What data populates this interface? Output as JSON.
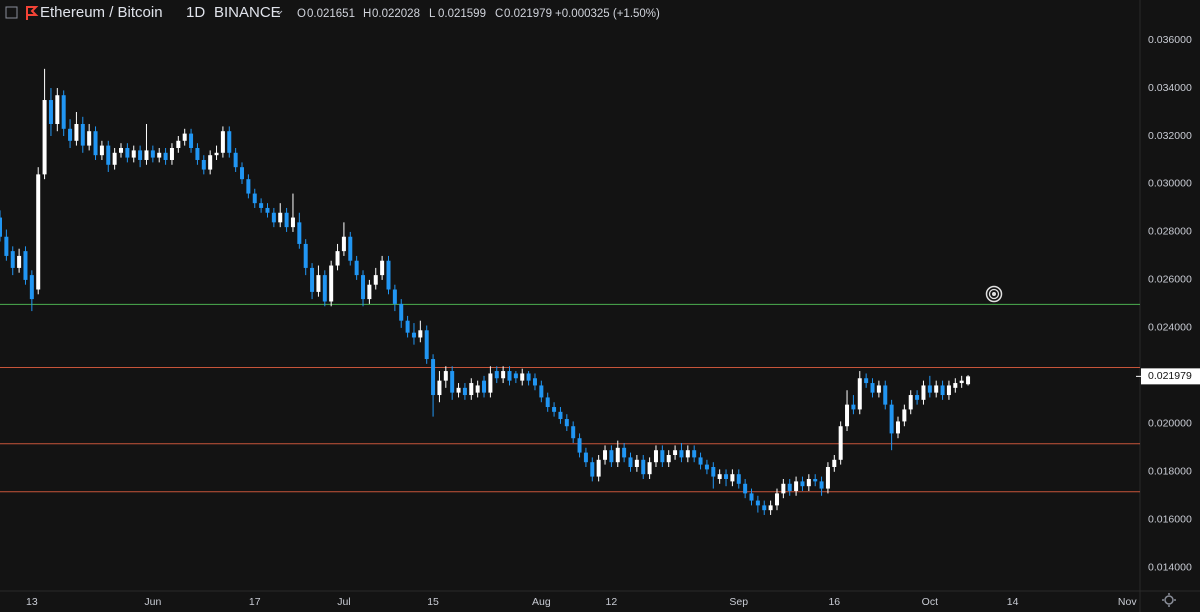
{
  "chart_data": {
    "type": "candlestick",
    "symbol": "Ethereum / Bitcoin",
    "interval": "1D",
    "exchange": "BINANCE",
    "ohlc_labels": [
      "O",
      "H",
      "L",
      "C"
    ],
    "change_label": "+0.000325 (+1.50%)",
    "up_color": "#ffffff",
    "down_color": "#2196f3",
    "x": [
      "May 8",
      "May 9",
      "May 10",
      "May 11",
      "May 12",
      "May 13",
      "May 14",
      "May 15",
      "May 16",
      "May 17",
      "May 18",
      "May 19",
      "May 20",
      "May 21",
      "May 22",
      "May 23",
      "May 24",
      "May 25",
      "May 26",
      "May 27",
      "May 28",
      "May 29",
      "May 30",
      "May 31",
      "Jun 1",
      "Jun 2",
      "Jun 3",
      "Jun 4",
      "Jun 5",
      "Jun 6",
      "Jun 7",
      "Jun 8",
      "Jun 9",
      "Jun 10",
      "Jun 11",
      "Jun 12",
      "Jun 13",
      "Jun 14",
      "Jun 15",
      "Jun 16",
      "Jun 17",
      "Jun 18",
      "Jun 19",
      "Jun 20",
      "Jun 21",
      "Jun 22",
      "Jun 23",
      "Jun 24",
      "Jun 25",
      "Jun 26",
      "Jun 27",
      "Jun 28",
      "Jun 29",
      "Jun 30",
      "Jul 1",
      "Jul 2",
      "Jul 3",
      "Jul 4",
      "Jul 5",
      "Jul 6",
      "Jul 7",
      "Jul 8",
      "Jul 9",
      "Jul 10",
      "Jul 11",
      "Jul 12",
      "Jul 13",
      "Jul 14",
      "Jul 15",
      "Jul 16",
      "Jul 17",
      "Jul 18",
      "Jul 19",
      "Jul 20",
      "Jul 21",
      "Jul 22",
      "Jul 23",
      "Jul 24",
      "Jul 25",
      "Jul 26",
      "Jul 27",
      "Jul 28",
      "Jul 29",
      "Jul 30",
      "Jul 31",
      "Aug 1",
      "Aug 2",
      "Aug 3",
      "Aug 4",
      "Aug 5",
      "Aug 6",
      "Aug 7",
      "Aug 8",
      "Aug 9",
      "Aug 10",
      "Aug 11",
      "Aug 12",
      "Aug 13",
      "Aug 14",
      "Aug 15",
      "Aug 16",
      "Aug 17",
      "Aug 18",
      "Aug 19",
      "Aug 20",
      "Aug 21",
      "Aug 22",
      "Aug 23",
      "Aug 24",
      "Aug 25",
      "Aug 26",
      "Aug 27",
      "Aug 28",
      "Aug 29",
      "Aug 30",
      "Aug 31",
      "Sep 1",
      "Sep 2",
      "Sep 3",
      "Sep 4",
      "Sep 5",
      "Sep 6",
      "Sep 7",
      "Sep 8",
      "Sep 9",
      "Sep 10",
      "Sep 11",
      "Sep 12",
      "Sep 13",
      "Sep 14",
      "Sep 15",
      "Sep 16",
      "Sep 17",
      "Sep 18",
      "Sep 19",
      "Sep 20",
      "Sep 21",
      "Sep 22",
      "Sep 23",
      "Sep 24",
      "Sep 25",
      "Sep 26",
      "Sep 27",
      "Sep 28",
      "Sep 29",
      "Sep 30",
      "Oct 1",
      "Oct 2",
      "Oct 3",
      "Oct 4",
      "Oct 5",
      "Oct 6",
      "Oct 7"
    ],
    "open": [
      0.0286,
      0.0278,
      0.0272,
      0.0265,
      0.0272,
      0.0262,
      0.0256,
      0.0304,
      0.0335,
      0.0325,
      0.0337,
      0.0323,
      0.0318,
      0.0325,
      0.0316,
      0.0322,
      0.0312,
      0.0316,
      0.0308,
      0.0313,
      0.0315,
      0.0311,
      0.0314,
      0.031,
      0.0314,
      0.0311,
      0.0313,
      0.031,
      0.0315,
      0.0318,
      0.0321,
      0.0315,
      0.031,
      0.0306,
      0.0312,
      0.0313,
      0.0322,
      0.0313,
      0.0307,
      0.0302,
      0.0296,
      0.0292,
      0.029,
      0.0288,
      0.0284,
      0.0288,
      0.0282,
      0.0284,
      0.0275,
      0.0265,
      0.0255,
      0.0262,
      0.0251,
      0.0266,
      0.0272,
      0.0278,
      0.0268,
      0.0262,
      0.0252,
      0.0258,
      0.0262,
      0.0268,
      0.0256,
      0.025,
      0.0243,
      0.0238,
      0.0236,
      0.0239,
      0.0227,
      0.0212,
      0.0218,
      0.0222,
      0.0213,
      0.0215,
      0.0212,
      0.0213,
      0.0218,
      0.0213,
      0.0222,
      0.0219,
      0.0222,
      0.0221,
      0.0218,
      0.0221,
      0.0219,
      0.0216,
      0.0211,
      0.0207,
      0.0205,
      0.0202,
      0.0199,
      0.0194,
      0.0188,
      0.0184,
      0.0178,
      0.0185,
      0.0189,
      0.0184,
      0.019,
      0.0186,
      0.0182,
      0.0185,
      0.0179,
      0.0184,
      0.0189,
      0.0184,
      0.0187,
      0.0189,
      0.0186,
      0.0189,
      0.0186,
      0.0183,
      0.0182,
      0.0177,
      0.0179,
      0.0176,
      0.0179,
      0.0175,
      0.0171,
      0.0168,
      0.0166,
      0.0164,
      0.0166,
      0.0171,
      0.0175,
      0.0172,
      0.0176,
      0.0174,
      0.0177,
      0.0176,
      0.0173,
      0.0182,
      0.0185,
      0.0199,
      0.0208,
      0.0206,
      0.0219,
      0.0217,
      0.0213,
      0.0216,
      0.0208,
      0.0196,
      0.0201,
      0.0206,
      0.0212,
      0.021,
      0.0216,
      0.0213,
      0.0216,
      0.0212,
      0.0215,
      0.0217,
      0.021651
    ],
    "high": [
      0.0289,
      0.0281,
      0.0274,
      0.0273,
      0.0274,
      0.0264,
      0.0307,
      0.0348,
      0.034,
      0.034,
      0.0339,
      0.0327,
      0.033,
      0.0328,
      0.0325,
      0.0324,
      0.0318,
      0.0318,
      0.0315,
      0.0317,
      0.0317,
      0.0316,
      0.0316,
      0.0325,
      0.0316,
      0.0315,
      0.0315,
      0.0317,
      0.032,
      0.0323,
      0.0323,
      0.0317,
      0.0312,
      0.0314,
      0.0316,
      0.0324,
      0.0324,
      0.0315,
      0.0309,
      0.0304,
      0.0298,
      0.0294,
      0.0292,
      0.029,
      0.0292,
      0.029,
      0.0296,
      0.0288,
      0.0277,
      0.0267,
      0.0266,
      0.0264,
      0.0268,
      0.0275,
      0.0284,
      0.028,
      0.027,
      0.0264,
      0.026,
      0.0265,
      0.027,
      0.027,
      0.0258,
      0.0252,
      0.0245,
      0.0242,
      0.0243,
      0.0241,
      0.0229,
      0.0222,
      0.0224,
      0.0224,
      0.0217,
      0.0217,
      0.0219,
      0.0218,
      0.022,
      0.0224,
      0.0224,
      0.0224,
      0.0224,
      0.0222,
      0.0223,
      0.0222,
      0.0221,
      0.0218,
      0.0213,
      0.0209,
      0.0207,
      0.0204,
      0.0201,
      0.0196,
      0.019,
      0.0186,
      0.0187,
      0.0191,
      0.0191,
      0.0193,
      0.0192,
      0.0188,
      0.0187,
      0.0187,
      0.0186,
      0.0191,
      0.0191,
      0.0189,
      0.0191,
      0.0192,
      0.0191,
      0.0191,
      0.0188,
      0.0185,
      0.0184,
      0.0181,
      0.0181,
      0.0181,
      0.0181,
      0.0177,
      0.0173,
      0.017,
      0.0168,
      0.0168,
      0.0173,
      0.0177,
      0.0177,
      0.0178,
      0.0178,
      0.0179,
      0.0179,
      0.0178,
      0.0184,
      0.0187,
      0.0201,
      0.0214,
      0.0212,
      0.0222,
      0.0221,
      0.0219,
      0.0218,
      0.0218,
      0.021,
      0.0203,
      0.0208,
      0.0214,
      0.0214,
      0.0218,
      0.022,
      0.0218,
      0.0218,
      0.0218,
      0.0219,
      0.022,
      0.022028
    ],
    "low": [
      0.0276,
      0.0268,
      0.0262,
      0.0263,
      0.0258,
      0.0247,
      0.0254,
      0.0302,
      0.032,
      0.0322,
      0.032,
      0.0315,
      0.0316,
      0.0313,
      0.0314,
      0.031,
      0.031,
      0.0305,
      0.0306,
      0.0311,
      0.0309,
      0.0309,
      0.0307,
      0.0308,
      0.0309,
      0.0309,
      0.0308,
      0.0308,
      0.0313,
      0.0316,
      0.0313,
      0.0308,
      0.0304,
      0.0304,
      0.031,
      0.0311,
      0.0311,
      0.0305,
      0.03,
      0.0294,
      0.029,
      0.0288,
      0.0286,
      0.0282,
      0.0282,
      0.028,
      0.028,
      0.0273,
      0.0262,
      0.0252,
      0.0253,
      0.0249,
      0.0249,
      0.0264,
      0.027,
      0.0266,
      0.026,
      0.0249,
      0.025,
      0.0256,
      0.026,
      0.0254,
      0.0247,
      0.024,
      0.0236,
      0.0233,
      0.0234,
      0.0225,
      0.0203,
      0.0209,
      0.0215,
      0.021,
      0.0211,
      0.021,
      0.021,
      0.0211,
      0.0211,
      0.0211,
      0.0217,
      0.0217,
      0.0216,
      0.0217,
      0.0216,
      0.0216,
      0.0214,
      0.0209,
      0.0205,
      0.0203,
      0.02,
      0.0197,
      0.0192,
      0.0186,
      0.0182,
      0.0176,
      0.0176,
      0.0183,
      0.0182,
      0.0182,
      0.0184,
      0.018,
      0.018,
      0.0177,
      0.0177,
      0.0182,
      0.0182,
      0.0182,
      0.0185,
      0.0184,
      0.0184,
      0.0184,
      0.0181,
      0.0179,
      0.0173,
      0.0175,
      0.0174,
      0.0174,
      0.0173,
      0.0169,
      0.0166,
      0.0163,
      0.0162,
      0.0162,
      0.0164,
      0.0169,
      0.017,
      0.017,
      0.0172,
      0.0172,
      0.0174,
      0.017,
      0.0171,
      0.018,
      0.0183,
      0.0197,
      0.0204,
      0.0204,
      0.0215,
      0.0211,
      0.0211,
      0.0206,
      0.0189,
      0.0194,
      0.0199,
      0.0204,
      0.0208,
      0.0208,
      0.0211,
      0.0211,
      0.021,
      0.021,
      0.0213,
      0.0215,
      0.021599
    ],
    "close": [
      0.0278,
      0.027,
      0.0265,
      0.027,
      0.026,
      0.0252,
      0.0304,
      0.0335,
      0.0325,
      0.0337,
      0.0323,
      0.0318,
      0.0325,
      0.0316,
      0.0322,
      0.0312,
      0.0316,
      0.0308,
      0.0313,
      0.0315,
      0.0311,
      0.0314,
      0.031,
      0.0314,
      0.0311,
      0.0313,
      0.031,
      0.0315,
      0.0318,
      0.0321,
      0.0315,
      0.031,
      0.0306,
      0.0312,
      0.0313,
      0.0322,
      0.0313,
      0.0307,
      0.0302,
      0.0296,
      0.0292,
      0.029,
      0.0288,
      0.0284,
      0.0288,
      0.0282,
      0.0286,
      0.0275,
      0.0265,
      0.0255,
      0.0262,
      0.0251,
      0.0266,
      0.0272,
      0.0278,
      0.0268,
      0.0262,
      0.0252,
      0.0258,
      0.0262,
      0.0268,
      0.0256,
      0.025,
      0.0243,
      0.0238,
      0.0236,
      0.0239,
      0.0227,
      0.0212,
      0.0218,
      0.0222,
      0.0213,
      0.0215,
      0.0212,
      0.0217,
      0.0216,
      0.0213,
      0.0221,
      0.0219,
      0.0222,
      0.0218,
      0.0219,
      0.0221,
      0.0218,
      0.0216,
      0.0211,
      0.0207,
      0.0205,
      0.0202,
      0.0199,
      0.0194,
      0.0188,
      0.0184,
      0.0178,
      0.0185,
      0.0189,
      0.0184,
      0.019,
      0.0186,
      0.0182,
      0.0185,
      0.0179,
      0.0184,
      0.0189,
      0.0184,
      0.0187,
      0.0189,
      0.0186,
      0.0189,
      0.0186,
      0.0183,
      0.0181,
      0.0178,
      0.0179,
      0.0177,
      0.0179,
      0.0175,
      0.0171,
      0.0168,
      0.0166,
      0.0164,
      0.0166,
      0.0171,
      0.0175,
      0.0172,
      0.0176,
      0.0174,
      0.0177,
      0.0176,
      0.0173,
      0.0182,
      0.0185,
      0.0199,
      0.0208,
      0.0206,
      0.0219,
      0.0217,
      0.0213,
      0.0216,
      0.0208,
      0.0196,
      0.0201,
      0.0206,
      0.0212,
      0.021,
      0.0216,
      0.0213,
      0.0216,
      0.0212,
      0.0216,
      0.0217,
      0.0218,
      0.021979
    ],
    "xlim": [
      "May 8",
      "Nov 3"
    ],
    "xticks": [
      {
        "value": "May 13",
        "label": "13"
      },
      {
        "value": "Jun 1",
        "label": "Jun"
      },
      {
        "value": "Jun 17",
        "label": "17"
      },
      {
        "value": "Jul 1",
        "label": "Jul"
      },
      {
        "value": "Jul 15",
        "label": "15"
      },
      {
        "value": "Aug 1",
        "label": "Aug"
      },
      {
        "value": "Aug 12",
        "label": "12"
      },
      {
        "value": "Sep 1",
        "label": "Sep"
      },
      {
        "value": "Sep 16",
        "label": "16"
      },
      {
        "value": "Oct 1",
        "label": "Oct"
      },
      {
        "value": "Oct 14",
        "label": "14"
      },
      {
        "value": "Nov 1",
        "label": "Nov"
      }
    ],
    "ylim": [
      0.01303,
      0.03767
    ],
    "yticks": [
      {
        "value": 0.014,
        "label": "0.014000"
      },
      {
        "value": 0.016,
        "label": "0.016000"
      },
      {
        "value": 0.018,
        "label": "0.018000"
      },
      {
        "value": 0.02,
        "label": "0.020000"
      },
      {
        "value": 0.022,
        "label": "0.022000"
      },
      {
        "value": 0.024,
        "label": "0.024000"
      },
      {
        "value": 0.026,
        "label": "0.026000"
      },
      {
        "value": 0.028,
        "label": "0.028000"
      },
      {
        "value": 0.03,
        "label": "0.030000"
      },
      {
        "value": 0.032,
        "label": "0.032000"
      },
      {
        "value": 0.034,
        "label": "0.034000"
      },
      {
        "value": 0.036,
        "label": "0.036000"
      }
    ],
    "hlines": [
      {
        "value": 0.02498,
        "color": "#4caf50"
      },
      {
        "value": 0.02235,
        "color": "#c8553a"
      },
      {
        "value": 0.01917,
        "color": "#c8553a"
      },
      {
        "value": 0.01717,
        "color": "#c8553a"
      }
    ]
  }
}
